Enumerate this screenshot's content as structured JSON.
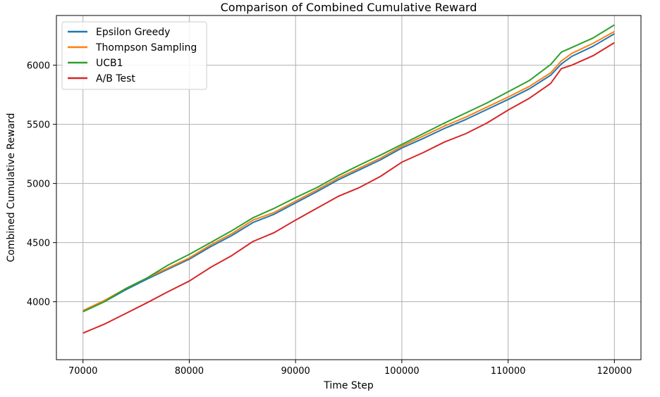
{
  "chart_data": {
    "type": "line",
    "title": "Comparison of Combined Cumulative Reward",
    "xlabel": "Time Step",
    "ylabel": "Combined Cumulative Reward",
    "xlim": [
      67500,
      122500
    ],
    "ylim": [
      3510,
      6420
    ],
    "xticks": [
      70000,
      80000,
      90000,
      100000,
      110000,
      120000
    ],
    "yticks": [
      4000,
      4500,
      5000,
      5500,
      6000
    ],
    "grid": true,
    "legend_position": "top-left",
    "x": [
      70000,
      72000,
      74000,
      76000,
      78000,
      80000,
      82000,
      84000,
      86000,
      88000,
      90000,
      92000,
      94000,
      96000,
      98000,
      100000,
      102000,
      104000,
      106000,
      108000,
      110000,
      112000,
      114000,
      115000,
      116000,
      118000,
      120000
    ],
    "series": [
      {
        "name": "Epsilon Greedy",
        "color": "#1f77b4",
        "values": [
          3920,
          4000,
          4100,
          4190,
          4275,
          4360,
          4465,
          4560,
          4670,
          4740,
          4835,
          4930,
          5030,
          5115,
          5200,
          5300,
          5380,
          5465,
          5540,
          5625,
          5710,
          5800,
          5915,
          6010,
          6075,
          6160,
          6265
        ]
      },
      {
        "name": "Thompson Sampling",
        "color": "#ff7f0e",
        "values": [
          3925,
          4010,
          4110,
          4200,
          4285,
          4370,
          4480,
          4575,
          4690,
          4755,
          4850,
          4945,
          5045,
          5130,
          5215,
          5315,
          5400,
          5485,
          5560,
          5645,
          5730,
          5820,
          5935,
          6035,
          6100,
          6185,
          6285
        ]
      },
      {
        "name": "UCB1",
        "color": "#2ca02c",
        "values": [
          3915,
          4000,
          4110,
          4200,
          4310,
          4400,
          4500,
          4600,
          4710,
          4790,
          4880,
          4965,
          5065,
          5155,
          5240,
          5330,
          5420,
          5510,
          5595,
          5680,
          5775,
          5870,
          6005,
          6110,
          6150,
          6230,
          6340
        ]
      },
      {
        "name": "A/B Test",
        "color": "#d62728",
        "values": [
          3735,
          3810,
          3900,
          3990,
          4085,
          4175,
          4290,
          4390,
          4510,
          4585,
          4690,
          4790,
          4890,
          4965,
          5060,
          5180,
          5260,
          5350,
          5420,
          5510,
          5620,
          5720,
          5845,
          5970,
          6000,
          6080,
          6190
        ]
      }
    ]
  }
}
